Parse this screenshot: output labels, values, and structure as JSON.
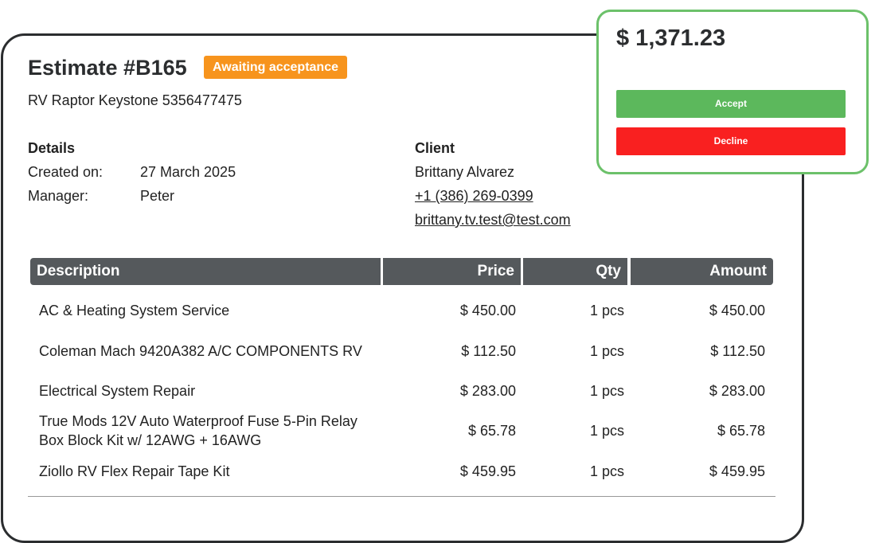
{
  "estimate": {
    "title": "Estimate #B165",
    "status": "Awaiting acceptance",
    "subtitle": "RV Raptor Keystone 5356477475",
    "details": {
      "heading": "Details",
      "rows": [
        [
          "Created on:",
          "27 March 2025"
        ],
        [
          "Manager:",
          "Peter"
        ]
      ]
    },
    "client": {
      "heading": "Client",
      "name": "Brittany Alvarez",
      "phone": "+1 (386) 269-0399",
      "email": "brittany.tv.test@test.com"
    },
    "table": {
      "headers": [
        "Description",
        "Price",
        "Qty",
        "Amount"
      ],
      "rows": [
        [
          "AC & Heating System Service",
          "$ 450.00",
          "1 pcs",
          "$ 450.00"
        ],
        [
          "Coleman Mach 9420A382 A/C COMPONENTS RV",
          "$ 112.50",
          "1 pcs",
          "$ 112.50"
        ],
        [
          "Electrical System Repair",
          "$ 283.00",
          "1 pcs",
          "$ 283.00"
        ],
        [
          "True Mods 12V Auto Waterproof Fuse 5-Pin Relay Box Block Kit w/ 12AWG + 16AWG",
          "$ 65.78",
          "1 pcs",
          "$ 65.78"
        ],
        [
          "Ziollo RV Flex Repair Tape Kit",
          "$ 459.95",
          "1 pcs",
          "$ 459.95"
        ]
      ]
    }
  },
  "summary": {
    "total": "$ 1,371.23",
    "accept": "Accept",
    "decline": "Decline"
  }
}
